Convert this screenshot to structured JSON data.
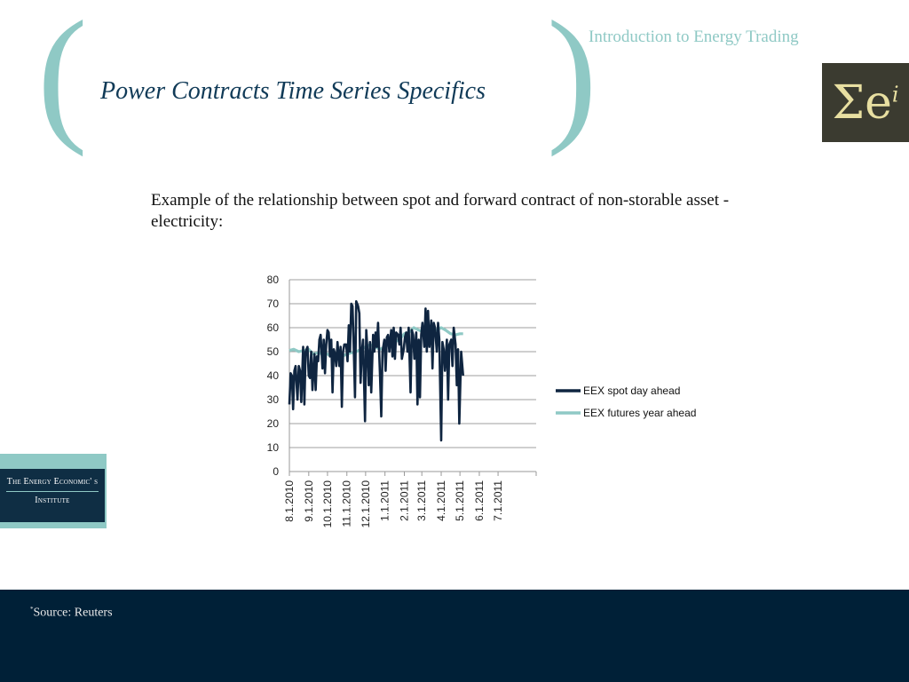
{
  "header": {
    "course_title": "Introduction to Energy Trading",
    "slide_title": "Power Contracts Time Series Specifics",
    "paren_left": "(",
    "paren_right": ")",
    "logo_base": "Σe",
    "logo_sup": "i"
  },
  "body": {
    "intro": "Example of the relationship between spot and forward contract of non-storable asset - electricity:"
  },
  "institute": {
    "line1": "The Energy Economic' s",
    "line2": "Institute"
  },
  "footer": {
    "source_mark": "*",
    "source": "Source: Reuters"
  },
  "colors": {
    "accent": "#8fc9c5",
    "title": "#103a57",
    "footer": "#002037",
    "spot_series": "#0f2540",
    "futures_series": "#8fc9c5"
  },
  "chart_data": {
    "type": "line",
    "title": "",
    "xlabel": "",
    "ylabel": "",
    "ylim": [
      0,
      80
    ],
    "yticks": [
      0,
      10,
      20,
      30,
      40,
      50,
      60,
      70,
      80
    ],
    "grid": true,
    "legend": "right",
    "x_ticks": [
      "8.1.2010",
      "9.1.2010",
      "10.1.2010",
      "11.1.2010",
      "12.1.2010",
      "1.1.2011",
      "2.1.2011",
      "3.1.2011",
      "4.1.2011",
      "5.1.2011",
      "6.1.2011",
      "7.1.2011"
    ],
    "x_range": [
      "2010-08-01",
      "2011-08-31"
    ],
    "series": [
      {
        "name": "EEX spot day ahead",
        "color": "#0f2540",
        "points": [
          [
            "2010-08-01",
            28
          ],
          [
            "2010-08-03",
            41
          ],
          [
            "2010-08-05",
            40
          ],
          [
            "2010-08-07",
            26
          ],
          [
            "2010-08-09",
            42
          ],
          [
            "2010-08-11",
            44
          ],
          [
            "2010-08-14",
            30
          ],
          [
            "2010-08-16",
            44
          ],
          [
            "2010-08-18",
            42
          ],
          [
            "2010-08-20",
            29
          ],
          [
            "2010-08-23",
            52
          ],
          [
            "2010-08-25",
            28
          ],
          [
            "2010-08-27",
            50
          ],
          [
            "2010-08-30",
            52
          ],
          [
            "2010-09-01",
            40
          ],
          [
            "2010-09-03",
            39
          ],
          [
            "2010-09-05",
            50
          ],
          [
            "2010-09-07",
            34
          ],
          [
            "2010-09-10",
            49
          ],
          [
            "2010-09-12",
            34
          ],
          [
            "2010-09-14",
            48
          ],
          [
            "2010-09-16",
            46
          ],
          [
            "2010-09-18",
            55
          ],
          [
            "2010-09-20",
            57
          ],
          [
            "2010-09-23",
            43
          ],
          [
            "2010-09-25",
            55
          ],
          [
            "2010-09-27",
            41
          ],
          [
            "2010-09-29",
            53
          ],
          [
            "2010-10-01",
            59
          ],
          [
            "2010-10-03",
            58
          ],
          [
            "2010-10-05",
            48
          ],
          [
            "2010-10-07",
            55
          ],
          [
            "2010-10-09",
            33
          ],
          [
            "2010-10-11",
            51
          ],
          [
            "2010-10-13",
            49
          ],
          [
            "2010-10-15",
            44
          ],
          [
            "2010-10-17",
            54
          ],
          [
            "2010-10-20",
            44
          ],
          [
            "2010-10-22",
            52
          ],
          [
            "2010-10-24",
            27
          ],
          [
            "2010-10-26",
            50
          ],
          [
            "2010-10-28",
            53
          ],
          [
            "2010-10-31",
            53
          ],
          [
            "2010-11-02",
            46
          ],
          [
            "2010-11-04",
            61
          ],
          [
            "2010-11-06",
            50
          ],
          [
            "2010-11-08",
            70
          ],
          [
            "2010-11-10",
            69
          ],
          [
            "2010-11-12",
            52
          ],
          [
            "2010-11-14",
            31
          ],
          [
            "2010-11-16",
            71
          ],
          [
            "2010-11-19",
            69
          ],
          [
            "2010-11-21",
            66
          ],
          [
            "2010-11-23",
            37
          ],
          [
            "2010-11-25",
            50
          ],
          [
            "2010-11-27",
            55
          ],
          [
            "2010-11-30",
            21
          ],
          [
            "2010-12-02",
            59
          ],
          [
            "2010-12-04",
            50
          ],
          [
            "2010-12-06",
            36
          ],
          [
            "2010-12-08",
            54
          ],
          [
            "2010-12-10",
            33
          ],
          [
            "2010-12-13",
            57
          ],
          [
            "2010-12-15",
            50
          ],
          [
            "2010-12-17",
            58
          ],
          [
            "2010-12-19",
            52
          ],
          [
            "2010-12-21",
            62
          ],
          [
            "2010-12-24",
            40
          ],
          [
            "2010-12-26",
            23
          ],
          [
            "2010-12-28",
            50
          ],
          [
            "2010-12-31",
            55
          ],
          [
            "2011-01-02",
            42
          ],
          [
            "2011-01-04",
            56
          ],
          [
            "2011-01-06",
            57
          ],
          [
            "2011-01-08",
            50
          ],
          [
            "2011-01-11",
            59
          ],
          [
            "2011-01-13",
            48
          ],
          [
            "2011-01-15",
            60
          ],
          [
            "2011-01-17",
            47
          ],
          [
            "2011-01-19",
            58
          ],
          [
            "2011-01-22",
            57
          ],
          [
            "2011-01-24",
            53
          ],
          [
            "2011-01-26",
            60
          ],
          [
            "2011-01-28",
            47
          ],
          [
            "2011-01-31",
            51
          ],
          [
            "2011-02-02",
            56
          ],
          [
            "2011-02-04",
            58
          ],
          [
            "2011-02-06",
            50
          ],
          [
            "2011-02-08",
            60
          ],
          [
            "2011-02-11",
            33
          ],
          [
            "2011-02-13",
            59
          ],
          [
            "2011-02-15",
            57
          ],
          [
            "2011-02-17",
            47
          ],
          [
            "2011-02-20",
            58
          ],
          [
            "2011-02-22",
            28
          ],
          [
            "2011-02-24",
            55
          ],
          [
            "2011-02-26",
            31
          ],
          [
            "2011-02-28",
            57
          ],
          [
            "2011-03-02",
            62
          ],
          [
            "2011-03-05",
            52
          ],
          [
            "2011-03-07",
            68
          ],
          [
            "2011-03-09",
            50
          ],
          [
            "2011-03-11",
            67
          ],
          [
            "2011-03-13",
            52
          ],
          [
            "2011-03-16",
            63
          ],
          [
            "2011-03-18",
            43
          ],
          [
            "2011-03-20",
            62
          ],
          [
            "2011-03-22",
            60
          ],
          [
            "2011-03-25",
            50
          ],
          [
            "2011-03-27",
            62
          ],
          [
            "2011-03-29",
            55
          ],
          [
            "2011-04-01",
            13
          ],
          [
            "2011-04-03",
            54
          ],
          [
            "2011-04-05",
            51
          ],
          [
            "2011-04-07",
            42
          ],
          [
            "2011-04-10",
            55
          ],
          [
            "2011-04-12",
            30
          ],
          [
            "2011-04-14",
            53
          ],
          [
            "2011-04-17",
            55
          ],
          [
            "2011-04-19",
            44
          ],
          [
            "2011-04-21",
            60
          ],
          [
            "2011-04-24",
            53
          ],
          [
            "2011-04-26",
            36
          ],
          [
            "2011-04-28",
            51
          ],
          [
            "2011-04-30",
            20
          ],
          [
            "2011-05-03",
            50
          ],
          [
            "2011-05-06",
            40
          ]
        ]
      },
      {
        "name": "EEX futures year ahead",
        "color": "#8fc9c5",
        "points": [
          [
            "2010-08-01",
            50.5
          ],
          [
            "2010-08-08",
            51
          ],
          [
            "2010-08-16",
            50
          ],
          [
            "2010-08-24",
            50.5
          ],
          [
            "2010-09-01",
            51
          ],
          [
            "2010-09-08",
            49
          ],
          [
            "2010-09-16",
            49.5
          ],
          [
            "2010-09-24",
            49
          ],
          [
            "2010-10-01",
            49
          ],
          [
            "2010-10-08",
            48
          ],
          [
            "2010-10-16",
            47.5
          ],
          [
            "2010-10-24",
            48
          ],
          [
            "2010-11-01",
            49
          ],
          [
            "2010-11-08",
            49.5
          ],
          [
            "2010-11-16",
            50
          ],
          [
            "2010-11-24",
            51
          ],
          [
            "2010-12-01",
            52
          ],
          [
            "2010-12-08",
            53
          ],
          [
            "2010-12-16",
            52
          ],
          [
            "2010-12-24",
            51
          ],
          [
            "2011-01-01",
            52
          ],
          [
            "2011-01-08",
            53
          ],
          [
            "2011-01-16",
            54
          ],
          [
            "2011-01-24",
            55
          ],
          [
            "2011-02-01",
            57.5
          ],
          [
            "2011-02-08",
            58
          ],
          [
            "2011-02-16",
            60
          ],
          [
            "2011-02-24",
            59
          ],
          [
            "2011-03-01",
            58.5
          ],
          [
            "2011-03-08",
            59
          ],
          [
            "2011-03-16",
            59.5
          ],
          [
            "2011-03-24",
            59
          ],
          [
            "2011-04-01",
            60
          ],
          [
            "2011-04-08",
            59
          ],
          [
            "2011-04-16",
            57.5
          ],
          [
            "2011-04-24",
            57
          ],
          [
            "2011-05-01",
            57.5
          ],
          [
            "2011-05-06",
            57.5
          ]
        ]
      }
    ]
  }
}
